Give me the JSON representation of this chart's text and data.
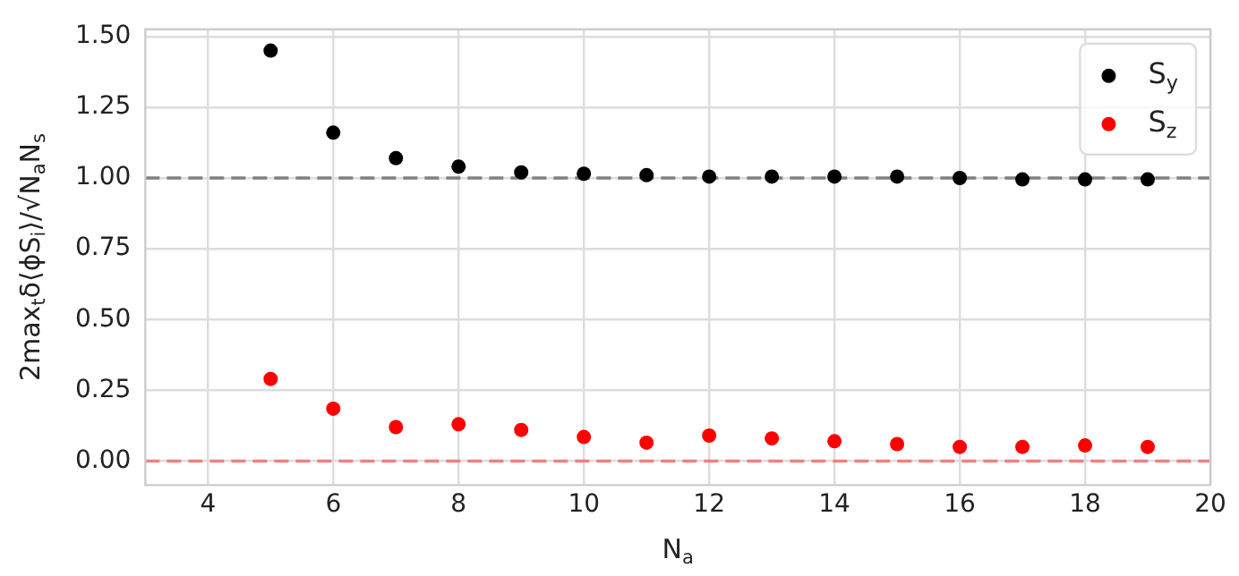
{
  "chart_data": {
    "type": "scatter",
    "xlabel": "N$_{a}$",
    "ylabel": "2max$_{t}$δ⟨ϕS$_{i}$⟩/√N$_{a}$N$_{s}$",
    "x": [
      5,
      6,
      7,
      8,
      9,
      10,
      11,
      12,
      13,
      14,
      15,
      16,
      17,
      18,
      19
    ],
    "series": [
      {
        "name": "S$_{y}$",
        "color": "#000000",
        "values": [
          1.45,
          1.16,
          1.07,
          1.04,
          1.02,
          1.015,
          1.01,
          1.005,
          1.005,
          1.005,
          1.005,
          1.0,
          0.995,
          0.995,
          0.995
        ]
      },
      {
        "name": "S$_{z}$",
        "color": "#ff0000",
        "values": [
          0.29,
          0.185,
          0.12,
          0.13,
          0.11,
          0.085,
          0.065,
          0.09,
          0.08,
          0.07,
          0.06,
          0.05,
          0.05,
          0.055,
          0.05
        ]
      }
    ],
    "xlim": [
      3,
      20
    ],
    "xticks": [
      4,
      6,
      8,
      10,
      12,
      14,
      16,
      18,
      20
    ],
    "ylim": [
      -0.085,
      1.525
    ],
    "yticks": [
      {
        "value": 0,
        "label": "0.00"
      },
      {
        "value": 0.25,
        "label": "0.25"
      },
      {
        "value": 0.5,
        "label": "0.50"
      },
      {
        "value": 0.75,
        "label": "0.75"
      },
      {
        "value": 1,
        "label": "1.00"
      },
      {
        "value": 1.25,
        "label": "1.25"
      },
      {
        "value": 1.5,
        "label": "1.50"
      }
    ],
    "ref_lines": [
      {
        "axis": "y",
        "value": 1,
        "color": "#808080",
        "line_style": "dashed"
      },
      {
        "axis": "y",
        "value": 0,
        "color": "#f08080",
        "line_style": "dashed"
      }
    ],
    "grid": true,
    "legend": "top right",
    "marker": "circle"
  }
}
